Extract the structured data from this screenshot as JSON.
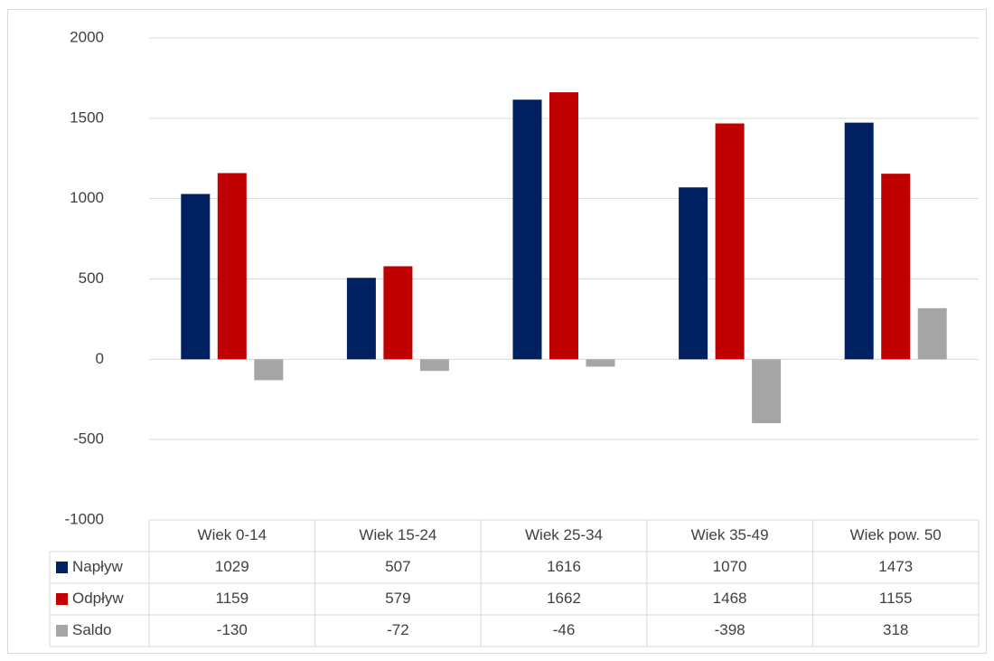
{
  "chart_data": {
    "type": "bar",
    "categories": [
      "Wiek 0-14",
      "Wiek 15-24",
      "Wiek 25-34",
      "Wiek 35-49",
      "Wiek pow. 50"
    ],
    "series": [
      {
        "name": "Napływ",
        "color": "#002060",
        "values": [
          1029,
          507,
          1616,
          1070,
          1473
        ]
      },
      {
        "name": "Odpływ",
        "color": "#C00000",
        "values": [
          1159,
          579,
          1662,
          1468,
          1155
        ]
      },
      {
        "name": "Saldo",
        "color": "#A5A5A5",
        "values": [
          -130,
          -72,
          -46,
          -398,
          318
        ]
      }
    ],
    "ylim": [
      -1000,
      2000
    ],
    "yticks": [
      -1000,
      -500,
      0,
      500,
      1000,
      1500,
      2000
    ],
    "grid": true,
    "data_table": true
  }
}
